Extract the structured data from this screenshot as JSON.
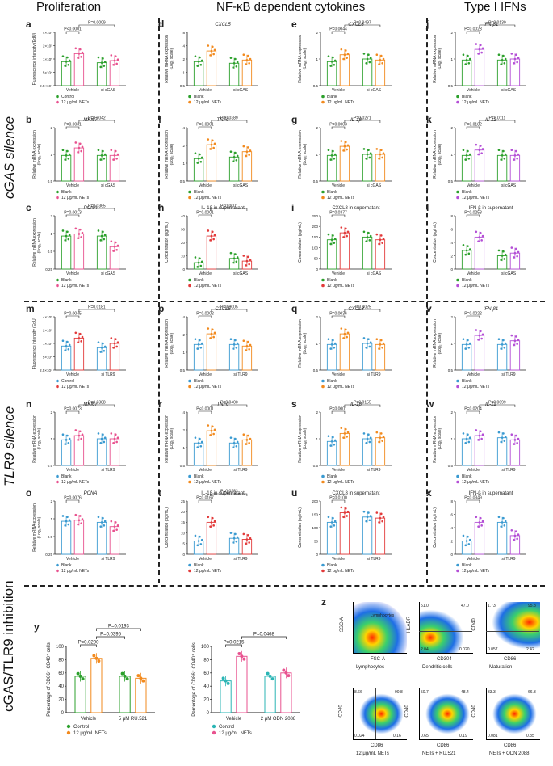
{
  "headers": {
    "prolif": "Proliferation",
    "nfkb": "NF-κB dependent cytokines",
    "ifn": "Type I IFNs"
  },
  "side": {
    "cgas": "cGAS silence",
    "tlr9": "TLR9 silence",
    "inhib": "cGAS/TLR9 inhibition"
  },
  "colors": {
    "green": "#2ca02c",
    "pink": "#e8528f",
    "orange": "#f28a1e",
    "purple": "#b44fd6",
    "blue": "#3a9ad1",
    "red": "#e23a3a",
    "teal": "#2bb5b5"
  },
  "yaxes": {
    "rel": "Relative mRNA expression",
    "log": "(Log₂ scale)",
    "fluor": "Fluorescence intengity (EdU)",
    "conc": "Concentration (pg/mL)",
    "pct": "Percentage of CD86⁺ CD40⁺ cells"
  },
  "panels": [
    {
      "id": "a",
      "title": "",
      "col": 0,
      "row": 0,
      "ylab": "fluor",
      "yticks": [
        "4×10⁵",
        "2×10⁵",
        "1×10⁵",
        "5×10⁴",
        "2.5×10⁴"
      ],
      "groups": [
        "Vehicle",
        "si cGAS"
      ],
      "c1": "green",
      "c2": "pink",
      "leg": [
        "Control",
        "12 μg/mL NETs"
      ],
      "p": [
        "P<0.0001",
        "P=0.0009"
      ],
      "vals": [
        0.45,
        0.6,
        0.43,
        0.47
      ]
    },
    {
      "id": "d",
      "title": "CXCL5",
      "col": 1,
      "row": 0,
      "ylab": "rel",
      "yticks": [
        "8",
        "4",
        "2",
        "1",
        "0.5"
      ],
      "groups": [
        "Vehicle",
        "si cGAS"
      ],
      "c1": "green",
      "c2": "orange",
      "leg": [
        "Blank",
        "12 μg/mL NETs"
      ],
      "p": [],
      "vals": [
        0.45,
        0.65,
        0.42,
        0.48
      ]
    },
    {
      "id": "e",
      "title": "CXCL8",
      "col": 2,
      "row": 0,
      "ylab": "rel",
      "yticks": [
        "2",
        "1",
        "0.5"
      ],
      "groups": [
        "Vehicle",
        "si cGAS"
      ],
      "c1": "green",
      "c2": "orange",
      "leg": [
        "Blank",
        "12 μg/mL NETs"
      ],
      "p": [
        "P=0.0044",
        "P=0.0497"
      ],
      "vals": [
        0.45,
        0.58,
        0.5,
        0.48
      ]
    },
    {
      "id": "j",
      "title": "IFN-β1",
      "col": 3,
      "row": 0,
      "ylab": "rel",
      "yticks": [
        "2",
        "1",
        "0.5"
      ],
      "groups": [
        "Vehicle",
        "si cGAS"
      ],
      "c1": "green",
      "c2": "purple",
      "leg": [
        "Blank",
        "12 μg/mL NETs"
      ],
      "p": [
        "P=0.0023",
        "P=0.0130"
      ],
      "vals": [
        0.48,
        0.68,
        0.48,
        0.5
      ]
    },
    {
      "id": "b",
      "title": "MKI67",
      "col": 0,
      "row": 1,
      "ylab": "rel",
      "yticks": [
        "2",
        "1",
        "0.5"
      ],
      "groups": [
        "Vehicle",
        "si cGAS"
      ],
      "c1": "green",
      "c2": "pink",
      "leg": [
        "Blank",
        "12 μg/mL NETs"
      ],
      "p": [
        "P=0.0031",
        "P=0.0042"
      ],
      "vals": [
        0.48,
        0.62,
        0.48,
        0.48
      ]
    },
    {
      "id": "f",
      "title": "TNFα",
      "col": 1,
      "row": 1,
      "ylab": "rel",
      "yticks": [
        "4",
        "2",
        "1",
        "0.5"
      ],
      "groups": [
        "Vehicle",
        "si cGAS"
      ],
      "c1": "green",
      "c2": "orange",
      "leg": [
        "Blank",
        "12 μg/mL NETs"
      ],
      "p": [
        "P=0.0001",
        "P=0.0389"
      ],
      "vals": [
        0.42,
        0.68,
        0.45,
        0.55
      ]
    },
    {
      "id": "g",
      "title": "IL-1β",
      "col": 2,
      "row": 1,
      "ylab": "rel",
      "yticks": [
        "2",
        "1",
        "0.5"
      ],
      "groups": [
        "Vehicle",
        "si cGAS"
      ],
      "c1": "green",
      "c2": "orange",
      "leg": [
        "Blank",
        "12 μg/mL NETs"
      ],
      "p": [
        "P=0.0003",
        "P=0.0271"
      ],
      "vals": [
        0.48,
        0.65,
        0.5,
        0.5
      ]
    },
    {
      "id": "k",
      "title": "IL-12",
      "col": 3,
      "row": 1,
      "ylab": "rel",
      "yticks": [
        "2",
        "1",
        "0.5"
      ],
      "groups": [
        "Vehicle",
        "si cGAS"
      ],
      "c1": "green",
      "c2": "purple",
      "leg": [
        "Blank",
        "12 μg/mL NETs"
      ],
      "p": [
        "P=0.0182",
        "P=0.0111"
      ],
      "vals": [
        0.48,
        0.58,
        0.48,
        0.48
      ]
    },
    {
      "id": "c",
      "title": "PCNA",
      "col": 0,
      "row": 2,
      "ylab": "rel",
      "yticks": [
        "2",
        "1",
        "0.5",
        "0.25"
      ],
      "groups": [
        "Vehicle",
        "si cGAS"
      ],
      "c1": "green",
      "c2": "pink",
      "leg": [
        "Blank",
        "12 μg/mL NETs"
      ],
      "p": [
        "P=0.0013",
        "P=0.0365"
      ],
      "vals": [
        0.62,
        0.66,
        0.62,
        0.42
      ]
    },
    {
      "id": "h",
      "title": "IL-1β in supernatant",
      "col": 1,
      "row": 2,
      "ylab": "conc",
      "yticks": [
        "40",
        "30",
        "20",
        "10",
        "0"
      ],
      "groups": [
        "Vehicle",
        "si cGAS"
      ],
      "c1": "green",
      "c2": "red",
      "leg": [
        "Blank",
        "12 μg/mL NETs"
      ],
      "p": [
        "P=0.0001",
        "P<0.0001"
      ],
      "vals": [
        0.12,
        0.62,
        0.2,
        0.15
      ]
    },
    {
      "id": "i",
      "title": "CXCL8 in supernatant",
      "col": 2,
      "row": 2,
      "ylab": "conc",
      "yticks": [
        "250",
        "200",
        "150",
        "100",
        "50",
        "0"
      ],
      "groups": [
        "Vehicle",
        "si cGAS"
      ],
      "c1": "green",
      "c2": "red",
      "leg": [
        "Blank",
        "12 μg/mL NETs"
      ],
      "p": [
        "P=0.0377"
      ],
      "vals": [
        0.55,
        0.68,
        0.6,
        0.55
      ]
    },
    {
      "id": "l",
      "title": "IFN-β in supernatant",
      "col": 3,
      "row": 2,
      "ylab": "conc",
      "yticks": [
        "8",
        "6",
        "4",
        "2",
        "0"
      ],
      "groups": [
        "Vehicle",
        "si cGAS"
      ],
      "c1": "green",
      "c2": "purple",
      "leg": [
        "Blank",
        "12 μg/mL NETs"
      ],
      "p": [
        "P=0.0258"
      ],
      "vals": [
        0.35,
        0.6,
        0.25,
        0.3
      ]
    },
    {
      "id": "m",
      "title": "",
      "col": 0,
      "row": 3,
      "ylab": "fluor",
      "yticks": [
        "4×10⁵",
        "2×10⁵",
        "1×10⁵",
        "5×10⁴",
        "2.5×10⁴"
      ],
      "groups": [
        "Vehicle",
        "si TLR9"
      ],
      "c1": "blue",
      "c2": "red",
      "leg": [
        "Control",
        "12 μg/mL NETs"
      ],
      "p": [
        "P=0.0045",
        "P=0.0181"
      ],
      "vals": [
        0.45,
        0.6,
        0.42,
        0.5
      ]
    },
    {
      "id": "p",
      "title": "CXCL5",
      "col": 1,
      "row": 3,
      "ylab": "rel",
      "yticks": [
        "4",
        "2",
        "1",
        "0.5"
      ],
      "groups": [
        "Vehicle",
        "si TLR9"
      ],
      "c1": "blue",
      "c2": "orange",
      "leg": [
        "Blank",
        "12 μg/mL NETs"
      ],
      "p": [
        "P=0.0002",
        "P=0.0005"
      ],
      "vals": [
        0.48,
        0.68,
        0.48,
        0.45
      ]
    },
    {
      "id": "q",
      "title": "CXCL8",
      "col": 2,
      "row": 3,
      "ylab": "rel",
      "yticks": [
        "2",
        "1",
        "0.5"
      ],
      "groups": [
        "Vehicle",
        "si TLR9"
      ],
      "c1": "blue",
      "c2": "orange",
      "leg": [
        "Blank",
        "12 μg/mL NETs"
      ],
      "p": [
        "P=0.0036",
        "P=0.0025"
      ],
      "vals": [
        0.48,
        0.68,
        0.5,
        0.48
      ]
    },
    {
      "id": "v",
      "title": "IFN-β1",
      "col": 3,
      "row": 3,
      "ylab": "rel",
      "yticks": [
        "2",
        "1",
        "0.5"
      ],
      "groups": [
        "Vehicle",
        "si TLR9"
      ],
      "c1": "blue",
      "c2": "purple",
      "leg": [
        "Blank",
        "12 μg/mL NETs"
      ],
      "p": [
        "P=0.0022"
      ],
      "vals": [
        0.48,
        0.65,
        0.48,
        0.55
      ]
    },
    {
      "id": "n",
      "title": "MKI67",
      "col": 0,
      "row": 4,
      "ylab": "rel",
      "yticks": [
        "2",
        "1",
        "0.5"
      ],
      "groups": [
        "Vehicle",
        "si TLR9"
      ],
      "c1": "blue",
      "c2": "pink",
      "leg": [
        "Blank",
        "12 μg/mL NETs"
      ],
      "p": [
        "P=0.0073",
        "P=0.0388"
      ],
      "vals": [
        0.48,
        0.56,
        0.5,
        0.5
      ]
    },
    {
      "id": "r",
      "title": "TNFα",
      "col": 1,
      "row": 4,
      "ylab": "rel",
      "yticks": [
        "4",
        "2",
        "1",
        "0.5"
      ],
      "groups": [
        "Vehicle",
        "si TLR9"
      ],
      "c1": "blue",
      "c2": "orange",
      "leg": [
        "Blank",
        "12 μg/mL NETs"
      ],
      "p": [
        "P<0.0001",
        "P=0.0400"
      ],
      "vals": [
        0.42,
        0.65,
        0.42,
        0.48
      ]
    },
    {
      "id": "s",
      "title": "IL-1β",
      "col": 2,
      "row": 4,
      "ylab": "rel",
      "yticks": [
        "2",
        "1",
        "0.5"
      ],
      "groups": [
        "Vehicle",
        "si TLR9"
      ],
      "c1": "blue",
      "c2": "orange",
      "leg": [
        "Blank",
        "12 μg/mL NETs"
      ],
      "p": [
        "P=0.0001",
        "P=0.0155"
      ],
      "vals": [
        0.45,
        0.6,
        0.5,
        0.52
      ]
    },
    {
      "id": "w",
      "title": "IL-12",
      "col": 3,
      "row": 4,
      "ylab": "rel",
      "yticks": [
        "2",
        "1",
        "0.5"
      ],
      "groups": [
        "Vehicle",
        "si TLR9"
      ],
      "c1": "blue",
      "c2": "purple",
      "leg": [
        "Blank",
        "12 μg/mL NETs"
      ],
      "p": [
        "P=0.0204",
        "P=0.0099"
      ],
      "vals": [
        0.5,
        0.56,
        0.52,
        0.48
      ]
    },
    {
      "id": "o",
      "title": "PCNA",
      "col": 0,
      "row": 5,
      "ylab": "rel",
      "yticks": [
        "2",
        "1",
        "0.5",
        "0.25"
      ],
      "groups": [
        "Vehicle",
        "si TLR9"
      ],
      "c1": "blue",
      "c2": "pink",
      "leg": [
        "Blank",
        "12 μg/mL NETs"
      ],
      "p": [
        "P=0.0076"
      ],
      "vals": [
        0.62,
        0.64,
        0.6,
        0.52
      ]
    },
    {
      "id": "t",
      "title": "IL-1β in supernatant",
      "col": 1,
      "row": 5,
      "ylab": "conc",
      "yticks": [
        "25",
        "20",
        "15",
        "10",
        "5",
        "0"
      ],
      "groups": [
        "Vehicle",
        "si TLR9"
      ],
      "c1": "blue",
      "c2": "red",
      "leg": [
        "Blank",
        "12 μg/mL NETs"
      ],
      "p": [
        "P=0.0167",
        "P=0.0383"
      ],
      "vals": [
        0.25,
        0.6,
        0.3,
        0.28
      ]
    },
    {
      "id": "u",
      "title": "CXCL8 in supernatant",
      "col": 2,
      "row": 5,
      "ylab": "conc",
      "yticks": [
        "200",
        "150",
        "100",
        "50",
        "0"
      ],
      "groups": [
        "Vehicle",
        "si TLR9"
      ],
      "c1": "blue",
      "c2": "red",
      "leg": [
        "Blank",
        "12 μg/mL NETs"
      ],
      "p": [
        "P=0.0100"
      ],
      "vals": [
        0.6,
        0.78,
        0.7,
        0.68
      ]
    },
    {
      "id": "x",
      "title": "IFN-β in supernatant",
      "col": 3,
      "row": 5,
      "ylab": "conc",
      "yticks": [
        "8",
        "6",
        "4",
        "2",
        "0"
      ],
      "groups": [
        "Vehicle",
        "si TLR9"
      ],
      "c1": "blue",
      "c2": "purple",
      "leg": [
        "Blank",
        "12 μg/mL NETs"
      ],
      "p": [
        "P=0.0349"
      ],
      "vals": [
        0.25,
        0.6,
        0.6,
        0.35
      ]
    }
  ],
  "inhibition": [
    {
      "id": "y",
      "groups": [
        "Vehicle",
        "5 μM RU.521"
      ],
      "c1": "green",
      "c2": "orange",
      "leg": [
        "Control",
        "12 μg/mL NETs"
      ],
      "p": [
        "P=0.0290",
        "P=0.0395",
        "P=0.0193"
      ],
      "yticks": [
        "100",
        "80",
        "60",
        "40",
        "20",
        "0"
      ],
      "vals": [
        0.55,
        0.82,
        0.55,
        0.52
      ]
    },
    {
      "id": "",
      "groups": [
        "Vehicle",
        "2 μM ODN 2088"
      ],
      "c1": "teal",
      "c2": "pink",
      "leg": [
        "Control",
        "12 μg/mL NETs"
      ],
      "p": [
        "P=0.0215",
        "P=0.0468"
      ],
      "yticks": [
        "100",
        "80",
        "60",
        "40",
        "20",
        "0"
      ],
      "vals": [
        0.48,
        0.85,
        0.55,
        0.6
      ]
    }
  ],
  "flow": {
    "panel_id": "z",
    "plots": [
      {
        "name": "lymph",
        "title": "Lymphocytes",
        "xlab": "FSC-A",
        "ylab": "SSC-A",
        "gate": "Lymphocytes",
        "nums": []
      },
      {
        "name": "dc",
        "title": "Dendritic cells",
        "xlab": "CD304",
        "ylab": "HLADR",
        "nums": [
          "51.0",
          "47.0",
          "2.04",
          "0.020"
        ]
      },
      {
        "name": "mat",
        "title": "Maturation",
        "xlab": "CD86",
        "ylab": "CD40",
        "nums": [
          "1.73",
          "95.8",
          "0.057",
          "2.42"
        ]
      },
      {
        "name": "nets",
        "title": "12 μg/mL NETs",
        "xlab": "CD86",
        "ylab": "CD40",
        "nums": [
          "8.66",
          "90.8",
          "0.024",
          "0.16"
        ]
      },
      {
        "name": "ru",
        "title": "NETs + RU.521",
        "xlab": "CD86",
        "ylab": "CD40",
        "nums": [
          "50.7",
          "48.4",
          "0.65",
          "0.19"
        ]
      },
      {
        "name": "odn",
        "title": "NETs + ODN 2088",
        "xlab": "CD86",
        "ylab": "CD40",
        "nums": [
          "33.3",
          "66.3",
          "0.081",
          "0.35"
        ]
      }
    ]
  }
}
